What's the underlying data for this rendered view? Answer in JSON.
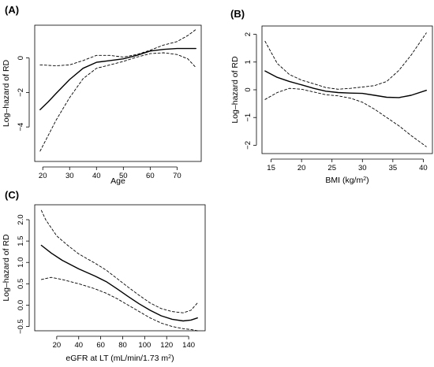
{
  "chart_data": [
    {
      "panel": "(A)",
      "type": "line",
      "xlabel": "Age",
      "ylabel": "Log–hazard of RD",
      "xlim": [
        17,
        79
      ],
      "ylim": [
        -6,
        1.9
      ],
      "xticks": [
        20,
        30,
        40,
        50,
        60,
        70
      ],
      "yticks": [
        -4,
        -2,
        0
      ],
      "grid": false,
      "series": [
        {
          "style": "solid",
          "x": [
            19,
            22,
            25,
            30,
            35,
            40,
            45,
            50,
            55,
            60,
            65,
            70,
            77
          ],
          "y": [
            -3.0,
            -2.55,
            -2.05,
            -1.25,
            -0.6,
            -0.25,
            -0.15,
            -0.05,
            0.15,
            0.4,
            0.5,
            0.55,
            0.55
          ]
        },
        {
          "style": "dashed",
          "x": [
            19,
            25,
            30,
            35,
            40,
            45,
            50,
            55,
            60,
            65,
            70,
            74,
            77
          ],
          "y": [
            -0.4,
            -0.45,
            -0.4,
            -0.15,
            0.15,
            0.15,
            0.05,
            0.2,
            0.45,
            0.75,
            0.95,
            1.3,
            1.65
          ]
        },
        {
          "style": "dashed",
          "x": [
            19,
            22,
            25,
            30,
            35,
            40,
            45,
            50,
            55,
            60,
            65,
            70,
            74,
            77
          ],
          "y": [
            -5.4,
            -4.5,
            -3.6,
            -2.3,
            -1.2,
            -0.6,
            -0.4,
            -0.2,
            0.05,
            0.25,
            0.3,
            0.2,
            -0.05,
            -0.55
          ]
        }
      ]
    },
    {
      "panel": "(B)",
      "type": "line",
      "xlabel": "BMI (kg/m",
      "xlabel_sup": "2",
      "xlabel_end": ")",
      "ylabel": "Log–hazard of RD",
      "xlim": [
        13.5,
        41.5
      ],
      "ylim": [
        -2.3,
        2.3
      ],
      "xticks": [
        15,
        20,
        25,
        30,
        35,
        40
      ],
      "yticks": [
        -2,
        -1,
        0,
        1,
        2
      ],
      "grid": false,
      "series": [
        {
          "style": "solid",
          "x": [
            14,
            16,
            18,
            20,
            22,
            24,
            26,
            28,
            30,
            32,
            34,
            36,
            38,
            40.5
          ],
          "y": [
            0.68,
            0.45,
            0.3,
            0.18,
            0.05,
            -0.05,
            -0.1,
            -0.12,
            -0.13,
            -0.2,
            -0.27,
            -0.28,
            -0.2,
            -0.02
          ]
        },
        {
          "style": "dashed",
          "x": [
            14,
            16,
            18,
            20,
            22,
            24,
            26,
            28,
            30,
            32,
            34,
            36,
            38,
            40.5
          ],
          "y": [
            1.75,
            0.95,
            0.55,
            0.35,
            0.22,
            0.08,
            0.02,
            0.05,
            0.1,
            0.15,
            0.3,
            0.7,
            1.25,
            2.05
          ]
        },
        {
          "style": "dashed",
          "x": [
            14,
            16,
            18,
            20,
            22,
            24,
            26,
            28,
            30,
            32,
            34,
            36,
            38,
            40.5
          ],
          "y": [
            -0.35,
            -0.1,
            0.05,
            0.02,
            -0.08,
            -0.18,
            -0.22,
            -0.3,
            -0.45,
            -0.7,
            -1.0,
            -1.3,
            -1.65,
            -2.05
          ]
        }
      ]
    },
    {
      "panel": "(C)",
      "type": "line",
      "xlabel": "eGFR at LT (mL/min/1.73 m",
      "xlabel_sup": "2",
      "xlabel_end": ")",
      "ylabel": "Log–hazard of RD",
      "xlim": [
        0,
        155
      ],
      "ylim": [
        -0.6,
        2.35
      ],
      "xticks": [
        20,
        40,
        60,
        80,
        100,
        120,
        140
      ],
      "yticks": [
        -0.5,
        0.0,
        0.5,
        1.0,
        1.5,
        2.0
      ],
      "ytick_labels": [
        "−0.5",
        "0.0",
        "0.5",
        "1.0",
        "1.5",
        "2.0"
      ],
      "grid": false,
      "series": [
        {
          "style": "solid",
          "x": [
            6,
            15,
            25,
            40,
            55,
            65,
            75,
            85,
            95,
            105,
            115,
            125,
            135,
            142,
            148
          ],
          "y": [
            1.4,
            1.22,
            1.05,
            0.85,
            0.68,
            0.55,
            0.38,
            0.2,
            0.03,
            -0.12,
            -0.25,
            -0.33,
            -0.37,
            -0.35,
            -0.3
          ]
        },
        {
          "style": "dashed",
          "x": [
            6,
            10,
            20,
            30,
            40,
            55,
            65,
            75,
            85,
            95,
            105,
            115,
            125,
            135,
            142,
            148
          ],
          "y": [
            2.22,
            2.0,
            1.62,
            1.4,
            1.2,
            0.98,
            0.82,
            0.62,
            0.42,
            0.23,
            0.05,
            -0.08,
            -0.15,
            -0.18,
            -0.12,
            0.05
          ]
        },
        {
          "style": "dashed",
          "x": [
            6,
            15,
            25,
            40,
            55,
            65,
            75,
            85,
            95,
            105,
            115,
            125,
            135,
            142,
            148
          ],
          "y": [
            0.6,
            0.65,
            0.6,
            0.5,
            0.38,
            0.28,
            0.15,
            0.0,
            -0.15,
            -0.3,
            -0.42,
            -0.5,
            -0.55,
            -0.57,
            -0.6
          ]
        }
      ]
    }
  ]
}
